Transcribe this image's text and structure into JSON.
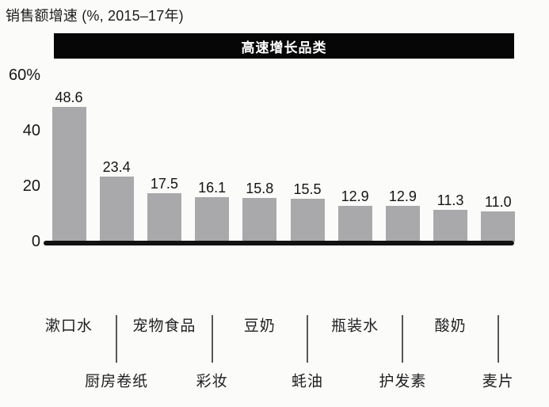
{
  "page": {
    "background": "#fbfbfa"
  },
  "chart_data": {
    "type": "bar",
    "title": "销售额增速 (%, 2015–17年)",
    "banner_label": "高速增长品类",
    "categories": [
      "漱口水",
      "厨房卷纸",
      "宠物食品",
      "彩妆",
      "豆奶",
      "蚝油",
      "瓶装水",
      "护发素",
      "酸奶",
      "麦片"
    ],
    "values": [
      48.6,
      23.4,
      17.5,
      16.1,
      15.8,
      15.5,
      12.9,
      12.9,
      11.3,
      11.0
    ],
    "value_label_decimals": 1,
    "y_ticks": [
      {
        "label": "60%",
        "value": 60
      },
      {
        "label": "40",
        "value": 40
      },
      {
        "label": "20",
        "value": 20
      },
      {
        "label": "0",
        "value": 0
      }
    ],
    "ylim": [
      0,
      60
    ],
    "grid": false,
    "legend": "none",
    "colors": {
      "bar": "#a9a9ab",
      "banner_bg": "#060606",
      "banner_text": "#ffffff",
      "axis": "#121212",
      "text": "#1c1c1c",
      "leader_line": "#575757"
    }
  }
}
